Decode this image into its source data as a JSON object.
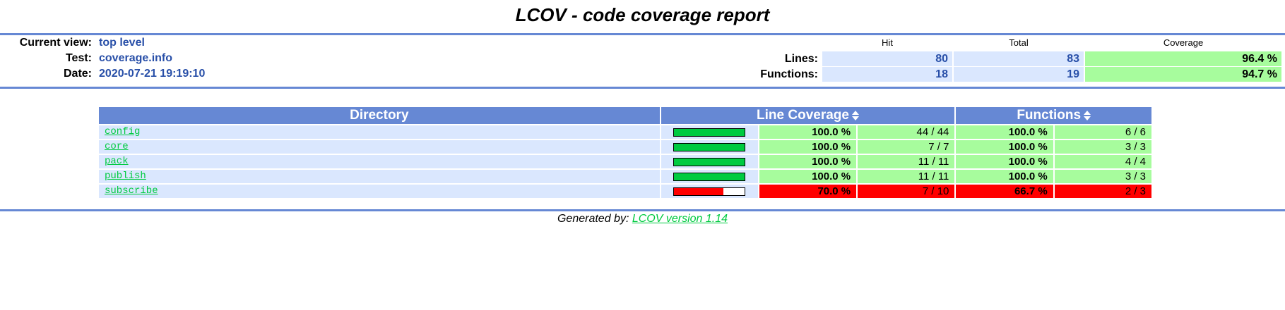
{
  "title": "LCOV - code coverage report",
  "header": {
    "current_view_label": "Current view:",
    "current_view": "top level",
    "test_label": "Test:",
    "test": "coverage.info",
    "date_label": "Date:",
    "date": "2020-07-21 19:19:10"
  },
  "summary": {
    "hit_label": "Hit",
    "total_label": "Total",
    "coverage_label": "Coverage",
    "lines_label": "Lines:",
    "lines_hit": "80",
    "lines_total": "83",
    "lines_coverage": "96.4 %",
    "functions_label": "Functions:",
    "functions_hit": "18",
    "functions_total": "19",
    "functions_coverage": "94.7 %"
  },
  "table": {
    "headers": {
      "directory": "Directory",
      "line_coverage": "Line Coverage",
      "functions": "Functions"
    },
    "rows": [
      {
        "name": "config",
        "line_pct": "100.0 %",
        "line_ratio": "44 / 44",
        "func_pct": "100.0 %",
        "func_ratio": "6 / 6",
        "bar_fraction": 1.0,
        "status": "hi"
      },
      {
        "name": "core",
        "line_pct": "100.0 %",
        "line_ratio": "7 / 7",
        "func_pct": "100.0 %",
        "func_ratio": "3 / 3",
        "bar_fraction": 1.0,
        "status": "hi"
      },
      {
        "name": "pack",
        "line_pct": "100.0 %",
        "line_ratio": "11 / 11",
        "func_pct": "100.0 %",
        "func_ratio": "4 / 4",
        "bar_fraction": 1.0,
        "status": "hi"
      },
      {
        "name": "publish",
        "line_pct": "100.0 %",
        "line_ratio": "11 / 11",
        "func_pct": "100.0 %",
        "func_ratio": "3 / 3",
        "bar_fraction": 1.0,
        "status": "hi"
      },
      {
        "name": "subscribe",
        "line_pct": "70.0 %",
        "line_ratio": "7 / 10",
        "func_pct": "66.7 %",
        "func_ratio": "2 / 3",
        "bar_fraction": 0.7,
        "status": "lo"
      }
    ]
  },
  "footer": {
    "prefix": "Generated by: ",
    "link": "LCOV version 1.14"
  },
  "colors": {
    "accent": "#6688d4",
    "high": "#a7fc9d",
    "low": "#ff0000",
    "bar_high": "#00cb40",
    "bar_low": "#ff0000"
  }
}
